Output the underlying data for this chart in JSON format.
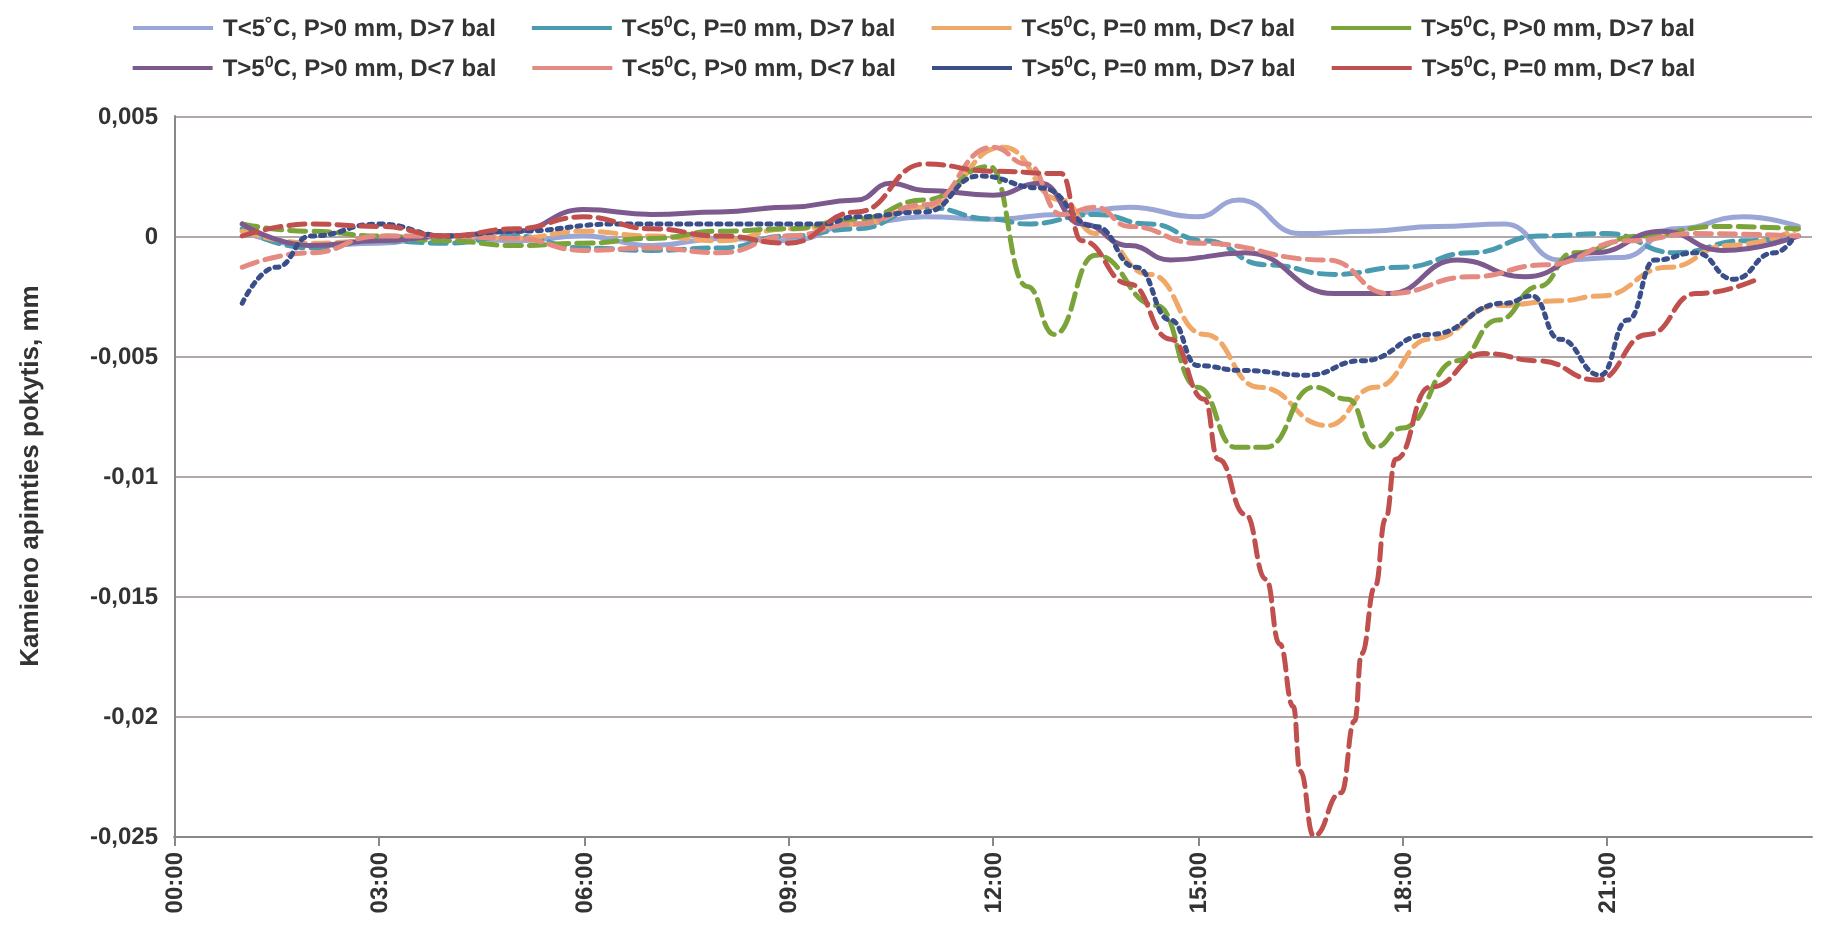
{
  "chart_data": {
    "type": "line",
    "ylabel": "Kamieno apimties pokytis, mm",
    "xlim": [
      0,
      24
    ],
    "xticks": [
      {
        "value": 0,
        "label": "00:00"
      },
      {
        "value": 3,
        "label": "03:00"
      },
      {
        "value": 6,
        "label": "06:00"
      },
      {
        "value": 9,
        "label": "09:00"
      },
      {
        "value": 12,
        "label": "12:00"
      },
      {
        "value": 15,
        "label": "15:00"
      },
      {
        "value": 18,
        "label": "18:00"
      },
      {
        "value": 21,
        "label": "21:00"
      }
    ],
    "ylim": [
      -0.025,
      0.005
    ],
    "yticks": [
      {
        "value": 0.005,
        "label": "0,005"
      },
      0,
      {
        "value": -0.005,
        "label": "-0,005"
      },
      {
        "value": -0.01,
        "label": "-0,01"
      },
      {
        "value": -0.015,
        "label": "-0,015"
      },
      {
        "value": -0.02,
        "label": "-0,02"
      },
      {
        "value": -0.025,
        "label": "-0,025"
      }
    ],
    "grid": "y",
    "legend": "top",
    "marker": "none",
    "series": [
      {
        "name": "T<5˚C, P>0 mm, D>7 bal",
        "color": "#9aa6d6",
        "line_style": "solid",
        "x": [
          1,
          2,
          3,
          4,
          5,
          6,
          7,
          8,
          9,
          10,
          11,
          12,
          13,
          14,
          15,
          15.6,
          16.5,
          17.5,
          18.5,
          19.5,
          20.3,
          21.2,
          22,
          23,
          23.8
        ],
        "values": [
          0.0002,
          -0.0004,
          -0.0003,
          0,
          -0.0002,
          0,
          -0.0004,
          -0.0001,
          -0.0002,
          0.0005,
          0.0008,
          0.0007,
          0.0009,
          0.0012,
          0.0008,
          0.0015,
          0.0001,
          0.0002,
          0.0004,
          0.0005,
          -0.001,
          -0.0009,
          0.0003,
          0.0008,
          0.0004
        ]
      },
      {
        "name": "T<5$^{0}$C, P=0 mm, D>7 bal",
        "color": "#4a9bb0",
        "line_style": "dashed",
        "x": [
          1,
          2,
          3,
          4,
          5,
          6,
          7,
          8,
          9,
          10,
          11,
          12,
          12.5,
          13.5,
          14.3,
          15.1,
          16,
          17,
          18,
          19,
          20,
          21,
          22,
          23,
          23.8
        ],
        "values": [
          0.0003,
          -0.0005,
          -0.0002,
          -0.0003,
          0,
          -0.0005,
          -0.0006,
          -0.0005,
          0,
          0.0003,
          0.0012,
          0.0007,
          0.0005,
          0.0009,
          0.0005,
          -0.0002,
          -0.0012,
          -0.0016,
          -0.0013,
          -0.0007,
          0,
          0.0001,
          -0.0007,
          -0.0002,
          0
        ]
      },
      {
        "name": "T<5$^{0}$C, P=0 mm, D<7 bal",
        "color": "#f0a868",
        "line_style": "dashed",
        "x": [
          1,
          2,
          3,
          4,
          5,
          6,
          7,
          8,
          9,
          10,
          11,
          12.15,
          13,
          13.5,
          14.3,
          15.1,
          15.9,
          16.9,
          17.6,
          18.4,
          19.4,
          20.3,
          20.9,
          21.9,
          22.75,
          23.8
        ],
        "values": [
          0.0002,
          -0.0003,
          -0.0002,
          0,
          -0.0001,
          0.0002,
          0,
          -0.0002,
          0.0003,
          0.0005,
          0.0012,
          0.0037,
          0.0015,
          0.0001,
          -0.0016,
          -0.0041,
          -0.0063,
          -0.0079,
          -0.0063,
          -0.0043,
          -0.0029,
          -0.0027,
          -0.0025,
          -0.0013,
          -0.0004,
          0.0003
        ]
      },
      {
        "name": "T>5$^{0}$C, P>0 mm, D>7 bal",
        "color": "#7aa33a",
        "line_style": "dashed",
        "x": [
          1,
          2,
          3,
          4,
          5,
          6,
          7,
          8,
          9,
          10,
          11,
          11.95,
          12.5,
          12.9,
          13.5,
          14.4,
          15,
          15.55,
          16,
          16.7,
          17.2,
          17.6,
          18,
          18.8,
          19.4,
          20,
          20.5,
          21.5,
          22.6,
          23.8
        ],
        "values": [
          0.0005,
          0.0002,
          0,
          -0.0002,
          -0.0004,
          -0.0003,
          -0.0001,
          0.0002,
          0.0003,
          0.0007,
          0.0015,
          0.0029,
          -0.0021,
          -0.0041,
          -0.0008,
          -0.0029,
          -0.0063,
          -0.0088,
          -0.0088,
          -0.0063,
          -0.0068,
          -0.0088,
          -0.008,
          -0.0052,
          -0.0035,
          -0.0021,
          -0.0007,
          0,
          0.0004,
          0.0003
        ]
      },
      {
        "name": "T>5$^{0}$C, P>0 mm, D<7 bal",
        "color": "#7d5a8e",
        "line_style": "solid",
        "x": [
          1,
          2,
          3,
          4,
          5,
          6,
          7,
          8,
          9,
          10,
          10.5,
          11,
          12,
          12.7,
          13.3,
          14,
          14.6,
          15.7,
          17,
          17.8,
          18.8,
          19.8,
          20.8,
          21.8,
          22.7,
          23.8
        ],
        "values": [
          0.0005,
          -0.0004,
          -0.0002,
          0,
          0.0002,
          0.0011,
          0.0009,
          0.001,
          0.0012,
          0.0015,
          0.0022,
          0.0019,
          0.0017,
          0.0022,
          0.0005,
          -0.0004,
          -0.001,
          -0.0007,
          -0.0024,
          -0.0024,
          -0.001,
          -0.0017,
          -0.0007,
          0.0002,
          -0.0006,
          0
        ]
      },
      {
        "name": "T<5$^{0}$C, P>0 mm, D<7 bal",
        "color": "#e58a80",
        "line_style": "dashed",
        "x": [
          1,
          2,
          3,
          4,
          5,
          6,
          7,
          8,
          9,
          10,
          11,
          12,
          12.5,
          13,
          13.5,
          14,
          15,
          16.9,
          17.8,
          19,
          20.1,
          21.3,
          22.3,
          23.8
        ],
        "values": [
          -0.0013,
          -0.0007,
          0,
          0,
          -0.0001,
          -0.0006,
          -0.0005,
          -0.0007,
          0,
          0.0005,
          0.0013,
          0.0037,
          0.003,
          0.0009,
          0.0012,
          0.0004,
          -0.0003,
          -0.001,
          -0.0024,
          -0.0017,
          -0.0012,
          -0.0002,
          0.0001,
          0
        ]
      },
      {
        "name": "T>5$^{0}$C, P=0 mm, D>7 bal",
        "color": "#3a4f8a",
        "line_style": "dotted",
        "x": [
          1,
          1.5,
          2,
          3,
          4,
          5,
          6.5,
          8,
          9.5,
          10,
          11,
          11.8,
          12.7,
          13.5,
          14.1,
          14.6,
          15,
          15.65,
          16.6,
          17.4,
          18.4,
          19.5,
          19.9,
          20.3,
          20.9,
          21.3,
          21.7,
          22.3,
          22.85,
          23.45,
          23.7
        ],
        "values": [
          -0.0028,
          -0.0013,
          0,
          0.0005,
          0,
          0.0002,
          0.0005,
          0.0005,
          0.0005,
          0.0008,
          0.001,
          0.0025,
          0.002,
          0.0004,
          -0.0013,
          -0.0035,
          -0.0054,
          -0.0056,
          -0.0058,
          -0.0052,
          -0.0041,
          -0.0028,
          -0.0025,
          -0.0043,
          -0.0058,
          -0.0035,
          -0.001,
          -0.0007,
          -0.0018,
          -0.0007,
          -0.0002
        ]
      },
      {
        "name": "T>5$^{0}$C, P=0 mm, D<7 bal",
        "color": "#c0504d",
        "line_style": "dashed",
        "x": [
          1,
          2,
          3,
          4,
          5,
          6,
          7,
          8,
          9,
          10,
          11,
          12,
          13,
          13.3,
          14,
          14.6,
          15.1,
          15.3,
          15.7,
          16,
          16.2,
          16.4,
          16.5,
          16.7,
          17.1,
          17.3,
          17.4,
          17.6,
          17.75,
          17.9,
          18.4,
          19.2,
          20,
          20.85,
          21.6,
          22.3,
          23.2
        ],
        "values": [
          0,
          0.0005,
          0.0004,
          0,
          0.0003,
          0.0008,
          0.0003,
          0,
          -0.0003,
          0.001,
          0.003,
          0.0027,
          0.0026,
          -0.0002,
          -0.002,
          -0.0043,
          -0.0068,
          -0.0093,
          -0.0116,
          -0.0143,
          -0.017,
          -0.0196,
          -0.0223,
          -0.025,
          -0.0232,
          -0.0202,
          -0.0174,
          -0.0146,
          -0.0118,
          -0.0093,
          -0.0063,
          -0.0049,
          -0.0052,
          -0.006,
          -0.0041,
          -0.0024,
          -0.0018
        ]
      }
    ]
  }
}
